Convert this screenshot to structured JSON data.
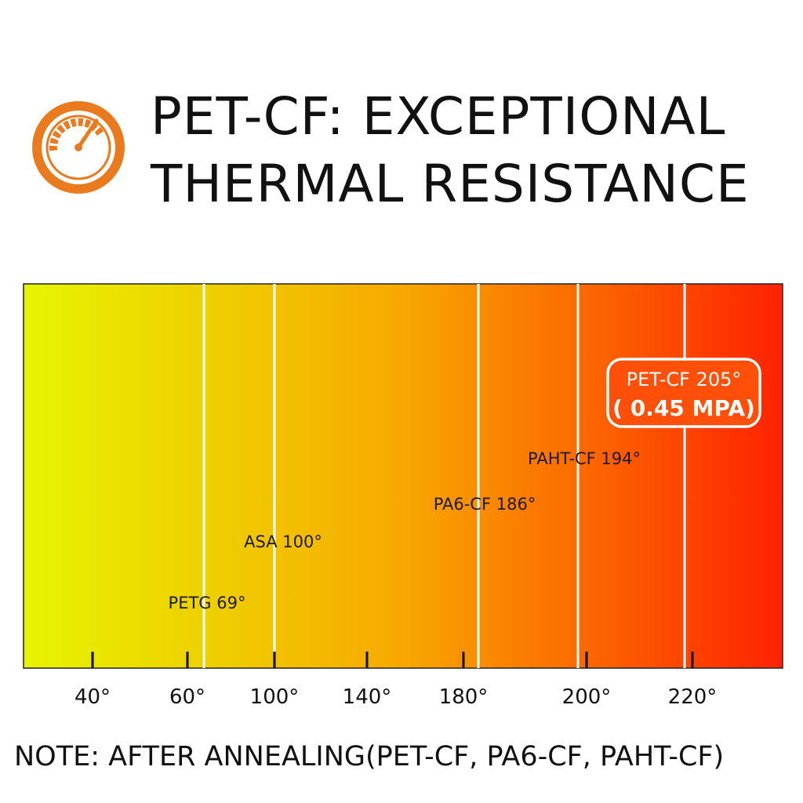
{
  "header": {
    "icon": "speedometer-icon",
    "title_line1": "PET-CF: EXCEPTIONAL",
    "title_line2": "THERMAL RESISTANCE"
  },
  "chart_data": {
    "type": "bar",
    "orientation": "horizontal-scale",
    "title": "",
    "xlabel": "",
    "ylabel": "",
    "x_ticks": [
      "40°",
      "60°",
      "100°",
      "140°",
      "180°",
      "200°",
      "220°"
    ],
    "series": [
      {
        "label": "PETG 69°",
        "value": 69
      },
      {
        "label": "ASA 100°",
        "value": 100
      },
      {
        "label": "PA6-CF 186°",
        "value": 186
      },
      {
        "label": "PAHT-CF 194°",
        "value": 194
      },
      {
        "label": "PET-CF 205°",
        "sublabel": "( 0.45 MPA)",
        "value": 205,
        "highlight": true
      }
    ],
    "gradient": {
      "start": "#e6f500",
      "mid": "#f8a800",
      "end": "#ff2200"
    }
  },
  "footer": {
    "note": "NOTE: AFTER ANNEALING(PET-CF, PA6-CF, PAHT-CF)"
  },
  "colors": {
    "icon_orange": "#ea7a1e",
    "text": "#111111",
    "marker_line": "#ffffff"
  }
}
